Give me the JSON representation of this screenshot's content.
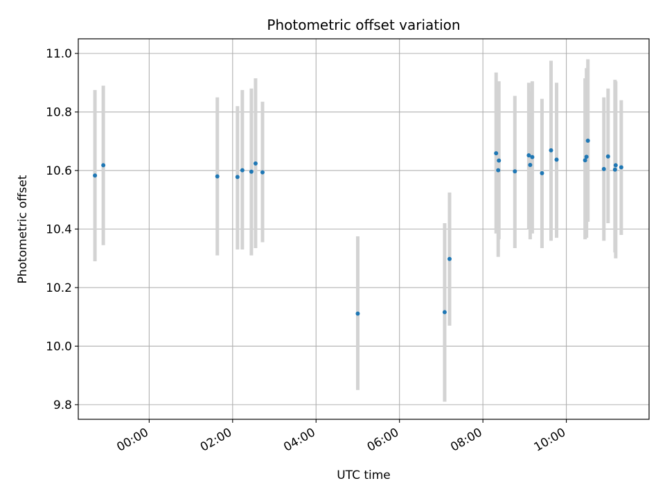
{
  "chart_data": {
    "type": "scatter",
    "title": "Photometric offset variation",
    "xlabel": "UTC time",
    "ylabel": "Photometric offset",
    "grid": true,
    "xlim": [
      "-01:42",
      "11:59"
    ],
    "ylim": [
      9.75,
      11.05
    ],
    "x_ticks": [
      "00:00",
      "02:00",
      "04:00",
      "06:00",
      "08:00",
      "10:00"
    ],
    "y_ticks": [
      "9.8",
      "10.0",
      "10.2",
      "10.4",
      "10.6",
      "10.8",
      "11.0"
    ],
    "colors": {
      "points": "#1f77b4",
      "errorbars": "#d3d3d3",
      "grid": "#b0b0b0"
    },
    "series": [
      {
        "x": [
          "-01:18",
          "-01:06",
          "01:38",
          "02:07",
          "02:14",
          "02:27",
          "02:33",
          "02:43",
          "05:00",
          "07:05",
          "07:12",
          "08:19",
          "08:22",
          "08:23",
          "08:46",
          "09:06",
          "09:08",
          "09:11",
          "09:25",
          "09:38",
          "09:46",
          "10:27",
          "10:29",
          "10:31",
          "10:54",
          "11:00",
          "11:10",
          "11:11",
          "11:19"
        ],
        "y": [
          10.583,
          10.618,
          10.58,
          10.578,
          10.601,
          10.596,
          10.624,
          10.594,
          10.111,
          10.116,
          10.298,
          10.659,
          10.601,
          10.634,
          10.597,
          10.652,
          10.619,
          10.646,
          10.591,
          10.669,
          10.637,
          10.635,
          10.647,
          10.702,
          10.605,
          10.648,
          10.603,
          10.618,
          10.611
        ],
        "yerr_low": [
          10.29,
          10.345,
          10.31,
          10.33,
          10.33,
          10.31,
          10.335,
          10.355,
          9.85,
          9.81,
          10.07,
          10.385,
          10.305,
          10.365,
          10.335,
          10.4,
          10.365,
          10.385,
          10.335,
          10.36,
          10.37,
          10.365,
          10.37,
          10.425,
          10.36,
          10.42,
          10.32,
          10.3,
          10.38
        ],
        "yerr_high": [
          10.875,
          10.89,
          10.85,
          10.82,
          10.875,
          10.88,
          10.915,
          10.835,
          10.375,
          10.42,
          10.525,
          10.935,
          10.9,
          10.905,
          10.855,
          10.9,
          10.87,
          10.905,
          10.845,
          10.975,
          10.9,
          10.915,
          10.95,
          10.98,
          10.85,
          10.88,
          10.91,
          10.905,
          10.84
        ]
      }
    ]
  }
}
